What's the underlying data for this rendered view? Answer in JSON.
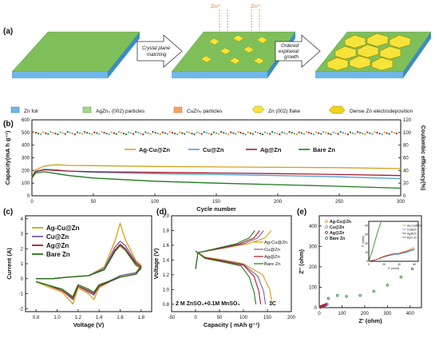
{
  "panel_labels": {
    "a": "(a)",
    "b": "(b)",
    "c": "(c)",
    "d": "(d)",
    "e": "(e)"
  },
  "schematic": {
    "ion_labels": [
      "Zn²⁺",
      "Zn²⁺"
    ],
    "arrow1": [
      "Crystal plane",
      "matching"
    ],
    "arrow2": [
      "Ordered",
      "expitaxial",
      "growth"
    ],
    "legend": [
      {
        "label": "Zn foil",
        "color": "#6fb7e9"
      },
      {
        "label": "AgZn₃ (002) particles",
        "color": "#a8d98a"
      },
      {
        "label": "CuZn₅ particles",
        "color": "#f2a466"
      },
      {
        "label": "Zn (002) flake",
        "color": "#f6e43a"
      },
      {
        "label": "Dense Zn electrodeposition",
        "color": "#f1d21b"
      }
    ]
  },
  "chart_data": [
    {
      "panel": "b",
      "type": "line",
      "xlabel": "Cycle number",
      "ylabel": "Capacity(mA h g⁻¹)",
      "y2label": "Coulombic efficiency(%)",
      "xlim": [
        0,
        300
      ],
      "ylim": [
        0,
        600
      ],
      "y2lim": [
        0,
        120
      ],
      "xticks": [
        "0",
        "50",
        "100",
        "150",
        "200",
        "250",
        "300"
      ],
      "yticks": [
        "0",
        "100",
        "200",
        "300",
        "400",
        "500",
        "600"
      ],
      "y2ticks": [
        "0",
        "20",
        "40",
        "60",
        "80",
        "100",
        "120"
      ],
      "series": [
        {
          "name": "Ag-Cu@Zn",
          "color": "#d4a017",
          "x": [
            0,
            3,
            10,
            20,
            30,
            50,
            100,
            150,
            200,
            250,
            300
          ],
          "values": [
            150,
            205,
            235,
            245,
            240,
            238,
            232,
            228,
            225,
            222,
            215
          ]
        },
        {
          "name": "Cu@Zn",
          "color": "#4a9fd8",
          "x": [
            0,
            3,
            10,
            20,
            30,
            50,
            100,
            150,
            200,
            250,
            300
          ],
          "values": [
            145,
            195,
            210,
            205,
            195,
            185,
            175,
            168,
            160,
            150,
            135
          ]
        },
        {
          "name": "Ag@Zn",
          "color": "#b0182a",
          "x": [
            0,
            3,
            10,
            20,
            30,
            50,
            100,
            150,
            200,
            250,
            300
          ],
          "values": [
            145,
            190,
            205,
            200,
            195,
            190,
            185,
            180,
            175,
            168,
            160
          ]
        },
        {
          "name": "Bare Zn",
          "color": "#1c7a1c",
          "x": [
            0,
            3,
            10,
            20,
            30,
            50,
            100,
            150,
            200,
            250,
            300
          ],
          "values": [
            140,
            180,
            190,
            175,
            160,
            140,
            115,
            100,
            88,
            75,
            60
          ]
        }
      ],
      "efficiency": {
        "x": [
          0,
          300
        ],
        "values": [
          99,
          99
        ]
      }
    },
    {
      "panel": "c",
      "type": "line",
      "xlabel": "Voltage (V)",
      "ylabel": "Current  (A)",
      "xlim": [
        0.7,
        1.9
      ],
      "ylim": [
        -2.2,
        4.2
      ],
      "xticks": [
        "0.8",
        "1.0",
        "1.2",
        "1.4",
        "1.6",
        "1.8"
      ],
      "yticks": [
        "-2",
        "-1",
        "0",
        "1",
        "2",
        "3",
        "4"
      ],
      "series": [
        {
          "name": "Ag-Cu@Zn",
          "color": "#d4a017",
          "x": [
            0.8,
            0.95,
            1.1,
            1.3,
            1.45,
            1.55,
            1.6,
            1.65,
            1.75,
            1.8,
            1.75,
            1.6,
            1.4,
            1.35,
            1.3,
            1.2,
            1.15,
            1.05,
            0.9,
            0.8
          ],
          "values": [
            0,
            0,
            0.1,
            0.2,
            0.8,
            2.5,
            3.7,
            2.6,
            1.2,
            0.9,
            0.4,
            0.2,
            -0.6,
            -1.4,
            -1.0,
            -0.6,
            -1.7,
            -0.9,
            -0.5,
            -0.2
          ]
        },
        {
          "name": "Cu@Zn",
          "color": "#7b5ea7",
          "x": [
            0.8,
            0.95,
            1.1,
            1.3,
            1.45,
            1.55,
            1.6,
            1.65,
            1.75,
            1.8,
            1.75,
            1.6,
            1.4,
            1.35,
            1.3,
            1.2,
            1.15,
            1.05,
            0.9,
            0.8
          ],
          "values": [
            0,
            0,
            0.1,
            0.2,
            0.7,
            2.1,
            2.5,
            2.2,
            1.1,
            0.8,
            0.4,
            0.2,
            -0.5,
            -1.1,
            -0.9,
            -0.5,
            -1.4,
            -0.8,
            -0.4,
            -0.2
          ]
        },
        {
          "name": "Ag@Zn",
          "color": "#b0182a",
          "x": [
            0.8,
            0.95,
            1.1,
            1.3,
            1.45,
            1.55,
            1.6,
            1.65,
            1.75,
            1.8,
            1.75,
            1.6,
            1.4,
            1.35,
            1.3,
            1.2,
            1.15,
            1.05,
            0.9,
            0.8
          ],
          "values": [
            0,
            0,
            0.1,
            0.2,
            0.6,
            1.9,
            2.3,
            2.0,
            1.0,
            0.8,
            0.3,
            0.1,
            -0.5,
            -1.0,
            -0.8,
            -0.5,
            -1.3,
            -0.8,
            -0.4,
            -0.2
          ]
        },
        {
          "name": "Bare Zn",
          "color": "#1c7a1c",
          "x": [
            0.8,
            0.95,
            1.1,
            1.3,
            1.45,
            1.55,
            1.6,
            1.65,
            1.75,
            1.8,
            1.75,
            1.6,
            1.4,
            1.35,
            1.3,
            1.2,
            1.15,
            1.05,
            0.9,
            0.8
          ],
          "values": [
            0,
            0,
            0.1,
            0.2,
            0.6,
            1.8,
            2.2,
            1.9,
            0.9,
            0.7,
            0.3,
            0.1,
            -0.4,
            -0.9,
            -0.7,
            -0.4,
            -1.2,
            -0.7,
            -0.4,
            -0.2
          ]
        }
      ]
    },
    {
      "panel": "d",
      "type": "line",
      "xlabel": "Capacity  ( mAh g⁻¹)",
      "ylabel": "Voltage (V)",
      "xlim": [
        -50,
        200
      ],
      "ylim": [
        0.7,
        2.0
      ],
      "xticks": [
        "-50",
        "0",
        "50",
        "100",
        "150",
        "200"
      ],
      "yticks": [
        "0.8",
        "1.0",
        "1.2",
        "1.4",
        "1.6",
        "1.8",
        "2.0"
      ],
      "annotation_left": "2 M ZnSO₄+0.1M MnSO₄",
      "annotation_right": "1C",
      "series": [
        {
          "name": "Ag-Cu@Zn",
          "color": "#d4a017",
          "x": [
            0,
            20,
            60,
            100,
            140,
            155,
            160
          ],
          "values": [
            1.52,
            1.44,
            1.4,
            1.35,
            1.2,
            1.0,
            0.8
          ]
        },
        {
          "name": "Cu@Zn",
          "color": "#7b5ea7",
          "x": [
            0,
            20,
            60,
            100,
            130,
            142,
            146
          ],
          "values": [
            1.52,
            1.43,
            1.39,
            1.34,
            1.18,
            0.98,
            0.8
          ]
        },
        {
          "name": "Ag@Zn",
          "color": "#b0182a",
          "x": [
            0,
            20,
            60,
            100,
            122,
            132,
            136
          ],
          "values": [
            1.52,
            1.43,
            1.38,
            1.33,
            1.18,
            0.98,
            0.8
          ]
        },
        {
          "name": "Bare Zn",
          "color": "#1c7a1c",
          "x": [
            0,
            20,
            60,
            95,
            112,
            122,
            126
          ],
          "values": [
            1.52,
            1.42,
            1.37,
            1.32,
            1.17,
            0.97,
            0.8
          ]
        },
        {
          "name": "Ag-Cu@Zn",
          "color": "#d4a017",
          "x": [
            0,
            5,
            60,
            110,
            145,
            158
          ],
          "values": [
            1.28,
            1.5,
            1.56,
            1.62,
            1.7,
            1.8
          ]
        },
        {
          "name": "Cu@Zn",
          "color": "#7b5ea7",
          "x": [
            0,
            5,
            55,
            100,
            130,
            142
          ],
          "values": [
            1.28,
            1.5,
            1.56,
            1.62,
            1.7,
            1.8
          ]
        },
        {
          "name": "Ag@Zn",
          "color": "#b0182a",
          "x": [
            0,
            5,
            50,
            92,
            122,
            134
          ],
          "values": [
            1.28,
            1.5,
            1.56,
            1.62,
            1.7,
            1.8
          ]
        },
        {
          "name": "Bare Zn",
          "color": "#1c7a1c",
          "x": [
            0,
            5,
            45,
            85,
            112,
            124
          ],
          "values": [
            1.28,
            1.5,
            1.56,
            1.62,
            1.7,
            1.8
          ]
        }
      ],
      "legend": [
        "Ag-Cu@Zn",
        "Cu@Zn",
        "Ag@Zn",
        "Bare Zn"
      ]
    },
    {
      "panel": "e",
      "type": "scatter",
      "xlabel": "Z' (ohm)",
      "ylabel": "Z'' (ohm)",
      "xlim": [
        0,
        450
      ],
      "ylim": [
        0,
        450
      ],
      "xticks": [
        "0",
        "100",
        "200",
        "300",
        "400"
      ],
      "yticks": [
        "0",
        "100",
        "200",
        "300",
        "400"
      ],
      "series": [
        {
          "name": "Ag-Cu@Zn",
          "color": "#d4a017",
          "x": [
            5,
            10,
            15,
            20,
            25,
            30,
            35
          ],
          "values": [
            2,
            6,
            9,
            10,
            12,
            14,
            18
          ]
        },
        {
          "name": "Cu@Zn",
          "color": "#4a9fd8",
          "x": [
            5,
            10,
            15,
            20,
            25,
            30,
            35
          ],
          "values": [
            2,
            5,
            8,
            9,
            11,
            13,
            16
          ]
        },
        {
          "name": "Ag@Zn",
          "color": "#b0182a",
          "x": [
            5,
            10,
            15,
            20,
            25,
            30
          ],
          "values": [
            2,
            6,
            9,
            11,
            13,
            16
          ]
        },
        {
          "name": "Bare Zn",
          "color": "#1c7a1c",
          "x": [
            5,
            40,
            80,
            120,
            180,
            240,
            300,
            360,
            410
          ],
          "values": [
            5,
            45,
            60,
            55,
            60,
            80,
            110,
            150,
            190
          ]
        }
      ],
      "inset": {
        "xlabel": "Z' (ohm)",
        "ylabel": "Z'' (ohm)",
        "xticks": [
          "0",
          "20",
          "40",
          "60"
        ],
        "yticks": [
          "0",
          "10",
          "20",
          "30",
          "40"
        ],
        "legend": [
          "Ag-Cu@Zn",
          "Cu@Zn",
          "Ag@Zn",
          "Bare Zn"
        ]
      }
    }
  ]
}
